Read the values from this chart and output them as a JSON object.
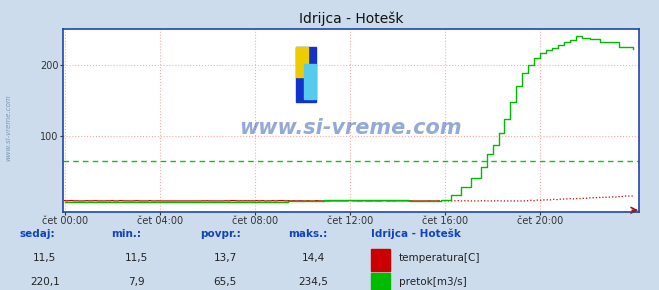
{
  "title": "Idrijca - Hotešk",
  "bg_color": "#ccdcec",
  "plot_bg_color": "#ffffff",
  "border_color": "#2244aa",
  "grid_h_color": "#ffaaaa",
  "grid_v_color": "#ffaaaa",
  "x_tick_labels": [
    "čet 00:00",
    "čet 04:00",
    "čet 08:00",
    "čet 12:00",
    "čet 16:00",
    "čet 20:00"
  ],
  "x_tick_positions": [
    0,
    48,
    96,
    144,
    192,
    240
  ],
  "y_ticks": [
    100,
    200
  ],
  "y_lim": [
    -5,
    250
  ],
  "x_lim": [
    -1,
    290
  ],
  "temp_color": "#cc0000",
  "flow_color": "#00bb00",
  "avg_flow_color": "#00cc00",
  "watermark": "www.si-vreme.com",
  "watermark_color": "#1144aa",
  "legend_title": "Idrijca - Hotešk",
  "sedaj_label": "sedaj:",
  "min_label": "min.:",
  "povpr_label": "povpr.:",
  "maks_label": "maks.:",
  "temp_sedaj": "11,5",
  "temp_min": "11,5",
  "temp_povpr": "13,7",
  "temp_maks": "14,4",
  "flow_sedaj": "220,1",
  "flow_min": "7,9",
  "flow_povpr": "65,5",
  "flow_maks": "234,5",
  "temp_label": "temperatura[C]",
  "flow_label": "pretok[m3/s]",
  "total_points": 288,
  "flow_avg": 65.5,
  "temp_avg_y": 11.5,
  "sidebar_text": "www.si-vreme.com",
  "sidebar_color": "#7799bb"
}
